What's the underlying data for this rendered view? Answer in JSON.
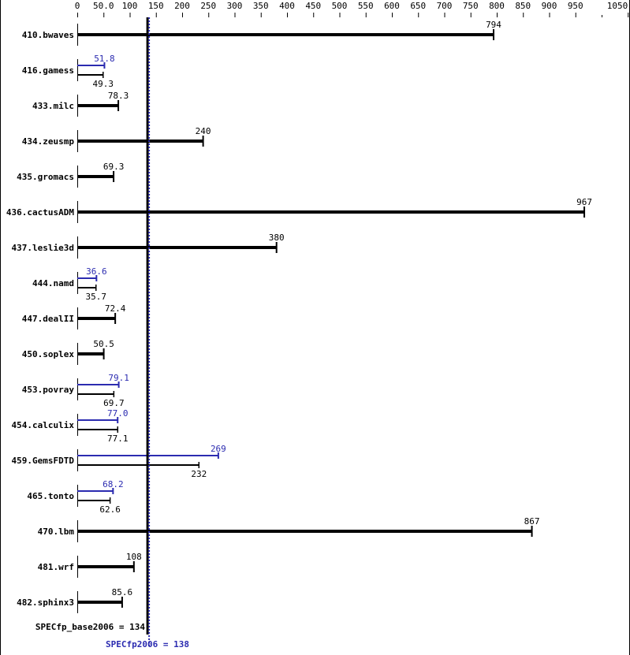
{
  "chart_data": {
    "type": "bar",
    "orientation": "horizontal",
    "xlim": [
      0,
      1050
    ],
    "x_ticks": [
      "0",
      "50.0",
      "100",
      "150",
      "200",
      "250",
      "300",
      "350",
      "400",
      "450",
      "500",
      "550",
      "600",
      "650",
      "700",
      "750",
      "800",
      "850",
      "900",
      "950",
      "1050"
    ],
    "x_tick_values": [
      0,
      50,
      100,
      150,
      200,
      250,
      300,
      350,
      400,
      450,
      500,
      550,
      600,
      650,
      700,
      750,
      800,
      850,
      900,
      950,
      1050
    ],
    "minor_tick_values": [
      1000
    ],
    "categories": [
      "410.bwaves",
      "416.gamess",
      "433.milc",
      "434.zeusmp",
      "435.gromacs",
      "436.cactusADM",
      "437.leslie3d",
      "444.namd",
      "447.dealII",
      "450.soplex",
      "453.povray",
      "454.calculix",
      "459.GemsFDTD",
      "465.tonto",
      "470.lbm",
      "481.wrf",
      "482.sphinx3"
    ],
    "series": [
      {
        "name": "SPECfp_base2006",
        "color": "#000000",
        "values": [
          794,
          49.3,
          78.3,
          240,
          69.3,
          967,
          380,
          35.7,
          72.4,
          50.5,
          69.7,
          77.1,
          232,
          62.6,
          867,
          108,
          85.6
        ],
        "labels": [
          "794",
          "49.3",
          "78.3",
          "240",
          "69.3",
          "967",
          "380",
          "35.7",
          "72.4",
          "50.5",
          "69.7",
          "77.1",
          "232",
          "62.6",
          "867",
          "108",
          "85.6"
        ]
      },
      {
        "name": "SPECfp2006",
        "color": "#2b2bb0",
        "values": [
          null,
          51.8,
          null,
          null,
          null,
          null,
          null,
          36.6,
          null,
          null,
          79.1,
          77.0,
          269,
          68.2,
          null,
          null,
          null
        ],
        "labels": [
          null,
          "51.8",
          null,
          null,
          null,
          null,
          null,
          "36.6",
          null,
          null,
          "79.1",
          "77.0",
          "269",
          "68.2",
          null,
          null,
          null
        ]
      }
    ],
    "reference_lines": [
      {
        "label": "SPECfp_base2006 = 134",
        "value": 134,
        "color": "#000000"
      },
      {
        "label": "SPECfp2006 = 138",
        "value": 138,
        "color": "#2b2bb0"
      }
    ]
  }
}
